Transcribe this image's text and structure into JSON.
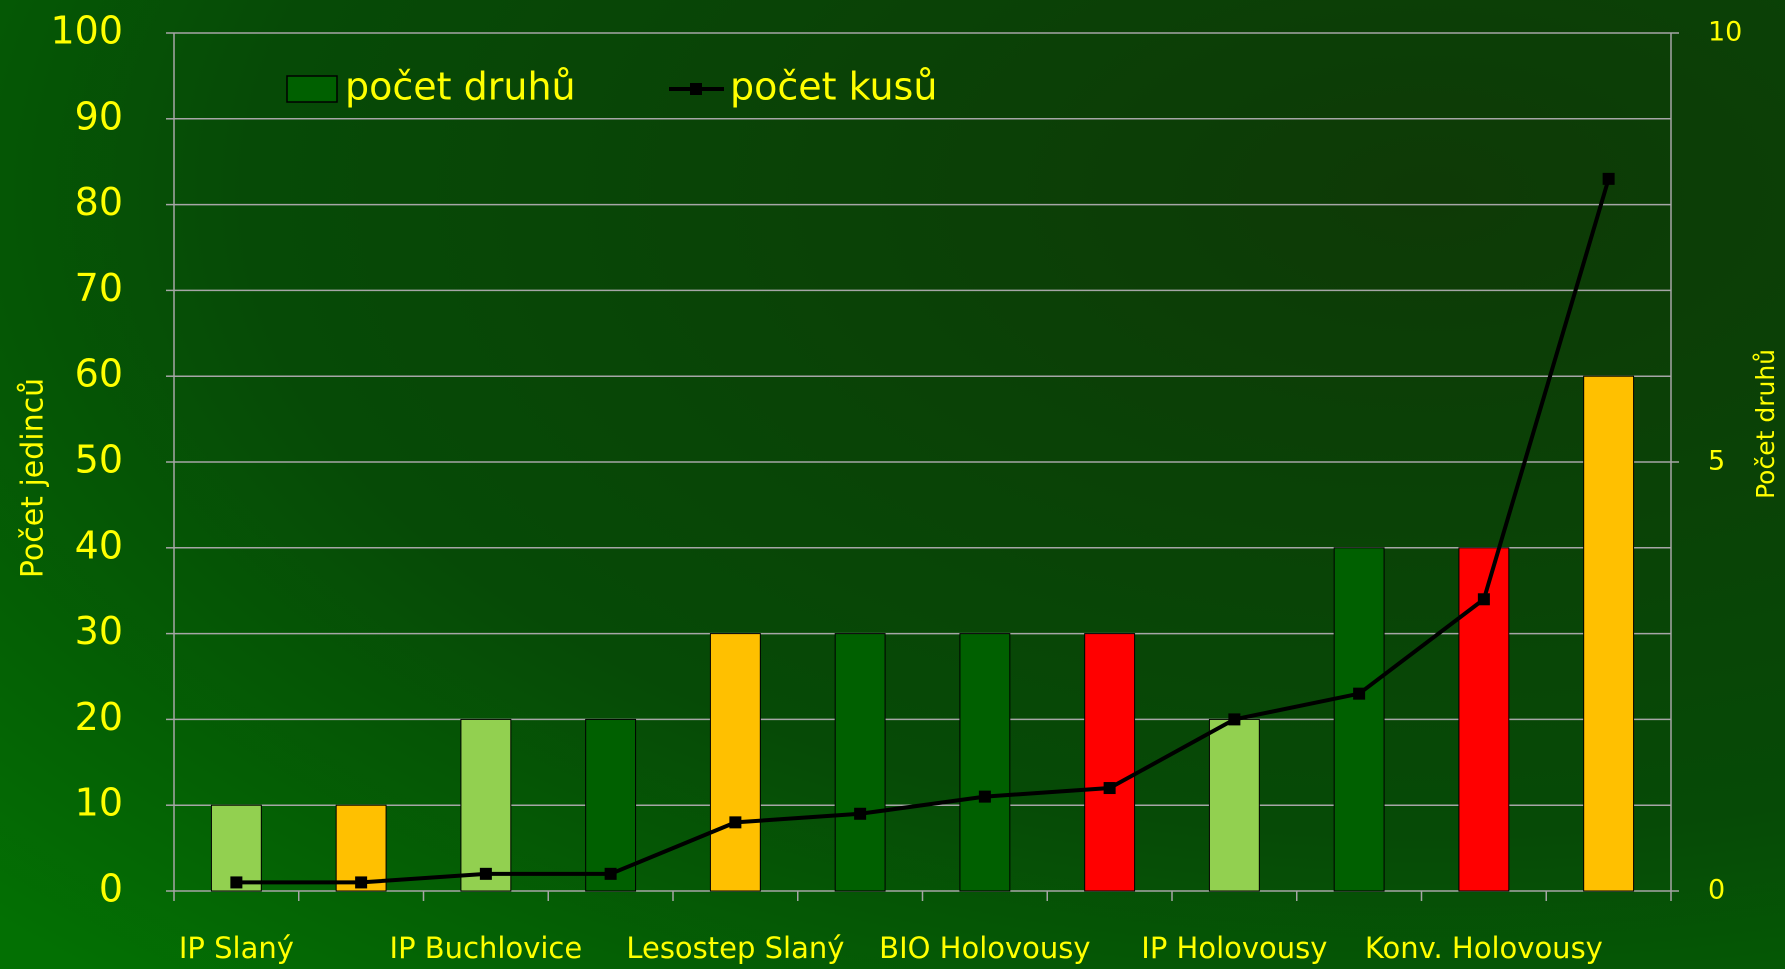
{
  "chart_data": {
    "type": "bar_line",
    "categories": [
      "IP Slaný",
      null,
      "IP Buchlovice",
      null,
      "Lesostep Slaný",
      null,
      "BIO Holovousy",
      null,
      "IP Holovousy",
      null,
      "Konv. Holovousy",
      null
    ],
    "ylabel": "Počet jedinců",
    "y2label": "Počet druhů",
    "ylim": [
      0,
      100
    ],
    "yticks": [
      0,
      10,
      20,
      30,
      40,
      50,
      60,
      70,
      80,
      90,
      100
    ],
    "y2lim": [
      0,
      10
    ],
    "y2ticks": [
      0,
      5,
      10
    ],
    "grid": true,
    "legend": "top-left",
    "series": [
      {
        "name": "počet druhů",
        "type": "bar",
        "axis": "y2",
        "color": "#006000",
        "colors": [
          "#92d050",
          "#ffc000",
          "#92d050",
          "#006000",
          "#ffc000",
          "#006000",
          "#006000",
          "#ff0000",
          "#92d050",
          "#006000",
          "#ff0000",
          "#ffc000"
        ],
        "values": [
          1,
          1,
          2,
          2,
          3,
          3,
          3,
          3,
          2,
          4,
          4,
          6
        ]
      },
      {
        "name": "počet kusů",
        "type": "line",
        "axis": "y",
        "color": "#000000",
        "values": [
          1,
          1,
          2,
          2,
          8,
          9,
          11,
          12,
          20,
          23,
          34,
          83
        ]
      }
    ]
  }
}
